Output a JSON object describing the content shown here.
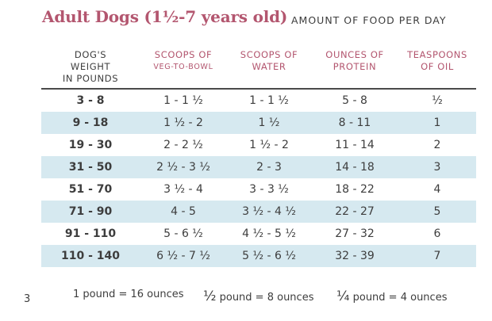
{
  "title": "Adult Dogs (1½-7 years old)",
  "subtitle": "AMOUNT OF FOOD PER DAY",
  "headers": {
    "weight": [
      "DOG'S",
      "WEIGHT",
      "IN POUNDS"
    ],
    "scoops_veg": [
      "SCOOPS OF",
      "VEG-TO-BOWL"
    ],
    "scoops_water": [
      "SCOOPS OF",
      "WATER"
    ],
    "protein": [
      "OUNCES OF",
      "PROTEIN"
    ],
    "oil": [
      "TEASPOONS",
      "OF OIL"
    ]
  },
  "rows": [
    [
      "3 - 8",
      "1 - 1 ½",
      "1 - 1 ½",
      "5 - 8",
      "½"
    ],
    [
      "9 - 18",
      "1 ½ - 2",
      "1 ½",
      "8 - 11",
      "1"
    ],
    [
      "19 - 30",
      "2 - 2 ½",
      "1 ½ - 2",
      "11 - 14",
      "2"
    ],
    [
      "31 - 50",
      "2 ½ - 3 ½",
      "2 - 3",
      "14 - 18",
      "3"
    ],
    [
      "51 - 70",
      "3 ½ - 4",
      "3 - 3 ½",
      "18 - 22",
      "4"
    ],
    [
      "71 - 90",
      "4 - 5",
      "3 ½ - 4 ½",
      "22 - 27",
      "5"
    ],
    [
      "91 - 110",
      "5 - 6 ½",
      "4 ½ - 5 ½",
      "27 - 32",
      "6"
    ],
    [
      "110 - 140",
      "6 ½ - 7 ½",
      "5 ½ - 6 ½",
      "32 - 39",
      "7"
    ]
  ],
  "footer": {
    "page_number": "3",
    "notes": [
      {
        "fraction": "",
        "text": "1 pound = 16 ounces"
      },
      {
        "fraction": "½",
        "text": " pound = 8 ounces"
      },
      {
        "fraction": "¼",
        "text": " pound = 4 ounces"
      }
    ]
  },
  "colors": {
    "title": "#b3566f",
    "header_accent": "#b3566f",
    "row_shade": "#d6e9f0",
    "text": "#3d3d3d"
  }
}
